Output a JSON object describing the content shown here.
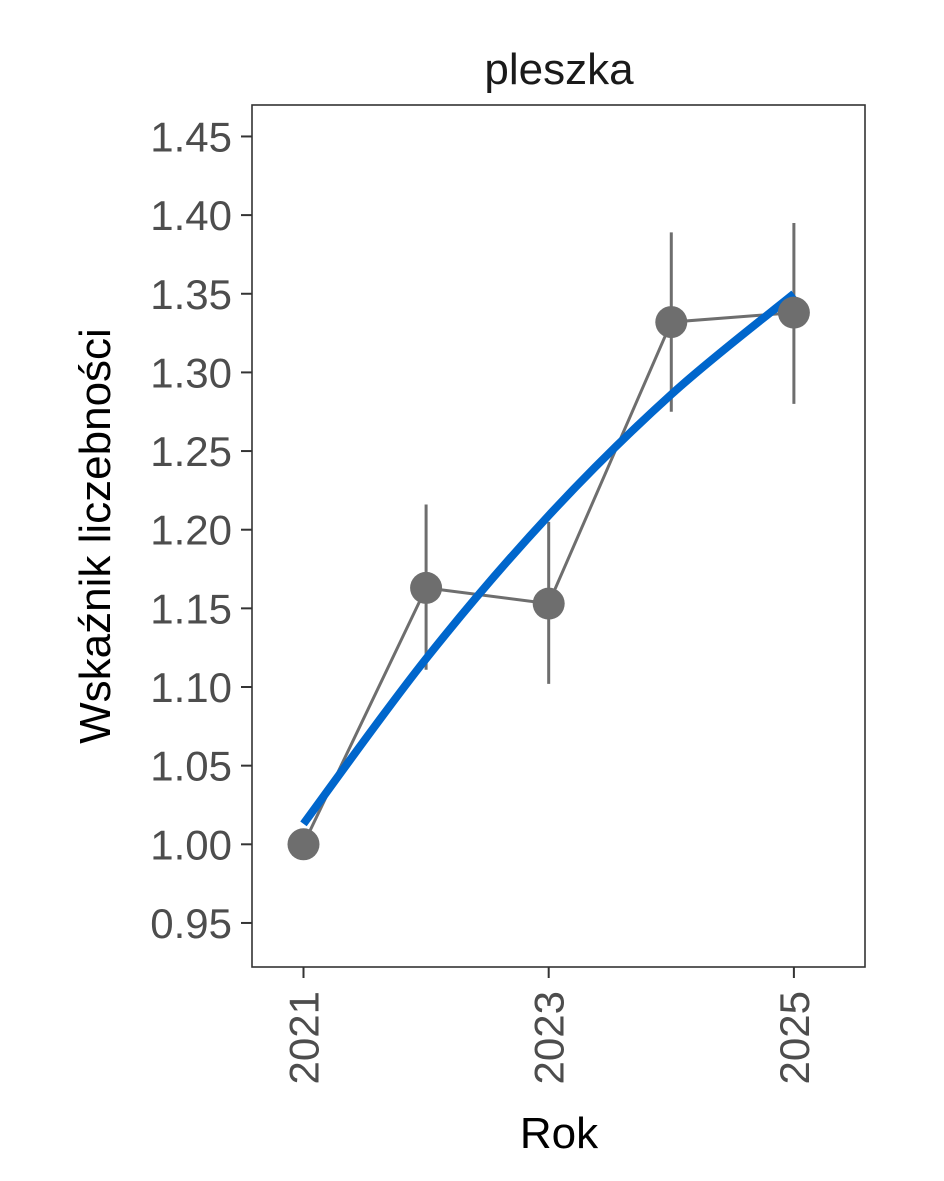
{
  "chart_data": {
    "type": "line",
    "title": "pleszka",
    "xlabel": "Rok",
    "ylabel": "Wskaźnik liczebności",
    "xlim": [
      2020.58,
      2025.58
    ],
    "ylim": [
      0.922,
      1.47
    ],
    "x_ticks": [
      2021,
      2023,
      2025
    ],
    "y_ticks": [
      0.95,
      1.0,
      1.05,
      1.1,
      1.15,
      1.2,
      1.25,
      1.3,
      1.35,
      1.4,
      1.45
    ],
    "grid": false,
    "legend": "none",
    "series": [
      {
        "kind": "observed",
        "color": "#6e6e6e",
        "points": [
          {
            "x": 2021,
            "y": 1.0
          },
          {
            "x": 2022,
            "y": 1.163,
            "lower": 1.111,
            "upper": 1.216
          },
          {
            "x": 2023,
            "y": 1.153,
            "lower": 1.102,
            "upper": 1.205
          },
          {
            "x": 2024,
            "y": 1.332,
            "lower": 1.275,
            "upper": 1.389
          },
          {
            "x": 2025,
            "y": 1.338,
            "lower": 1.28,
            "upper": 1.395
          }
        ]
      },
      {
        "kind": "trend",
        "color": "#0066cc",
        "points": [
          {
            "x": 2021,
            "y": 1.013
          },
          {
            "x": 2022,
            "y": 1.118
          },
          {
            "x": 2023,
            "y": 1.209
          },
          {
            "x": 2024,
            "y": 1.286
          },
          {
            "x": 2025,
            "y": 1.35
          }
        ]
      }
    ]
  }
}
